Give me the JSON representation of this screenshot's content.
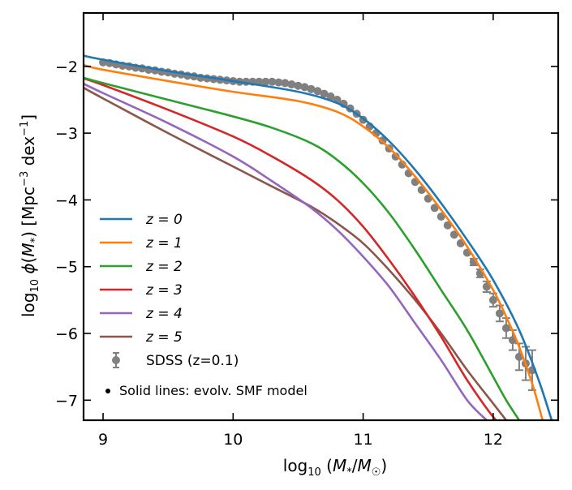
{
  "chart_data": {
    "type": "line",
    "title": "",
    "xlabel": "log10(M*/M☉)",
    "ylabel": "log10 φ(M*) [Mpc^-3 dex^-1]",
    "xlim": [
      8.85,
      12.5
    ],
    "ylim": [
      -7.3,
      -1.2
    ],
    "xticks": [
      9,
      10,
      11,
      12
    ],
    "yticks": [
      -2,
      -3,
      -4,
      -5,
      -6,
      -7
    ],
    "xtick_labels": [
      "9",
      "10",
      "11",
      "12"
    ],
    "ytick_labels": [
      "−2",
      "−3",
      "−4",
      "−5",
      "−6",
      "−7"
    ],
    "colors": {
      "z0": "#1f77b4",
      "z1": "#ff7f0e",
      "z2": "#2ca02c",
      "z3": "#d62728",
      "z4": "#9467bd",
      "z5": "#8c564b",
      "sdss": "#808080"
    },
    "series": [
      {
        "name": "z = 0",
        "key": "z0",
        "x": [
          8.85,
          9.0,
          9.5,
          10.0,
          10.5,
          10.8,
          11.0,
          11.2,
          11.4,
          11.6,
          11.8,
          12.0,
          12.2,
          12.35,
          12.45
        ],
        "y": [
          -1.84,
          -1.9,
          -2.07,
          -2.22,
          -2.38,
          -2.55,
          -2.78,
          -3.12,
          -3.55,
          -4.05,
          -4.6,
          -5.2,
          -5.95,
          -6.7,
          -7.3
        ]
      },
      {
        "name": "z = 1",
        "key": "z1",
        "x": [
          8.85,
          9.0,
          9.5,
          10.0,
          10.5,
          10.8,
          11.0,
          11.2,
          11.4,
          11.6,
          11.8,
          12.0,
          12.1,
          12.2,
          12.3,
          12.38
        ],
        "y": [
          -1.98,
          -2.05,
          -2.22,
          -2.38,
          -2.52,
          -2.68,
          -2.9,
          -3.22,
          -3.65,
          -4.15,
          -4.7,
          -5.35,
          -5.75,
          -6.2,
          -6.75,
          -7.3
        ]
      },
      {
        "name": "z = 2",
        "key": "z2",
        "x": [
          8.85,
          9.0,
          9.5,
          10.0,
          10.3,
          10.6,
          10.8,
          11.0,
          11.2,
          11.4,
          11.6,
          11.8,
          12.0,
          12.1,
          12.2
        ],
        "y": [
          -2.17,
          -2.25,
          -2.5,
          -2.75,
          -2.92,
          -3.15,
          -3.4,
          -3.75,
          -4.2,
          -4.75,
          -5.35,
          -5.95,
          -6.65,
          -7.0,
          -7.3
        ]
      },
      {
        "name": "z = 3",
        "key": "z3",
        "x": [
          8.85,
          9.0,
          9.5,
          10.0,
          10.3,
          10.6,
          10.8,
          11.0,
          11.2,
          11.4,
          11.6,
          11.8,
          12.0,
          12.05
        ],
        "y": [
          -2.18,
          -2.28,
          -2.65,
          -3.05,
          -3.35,
          -3.7,
          -4.0,
          -4.4,
          -4.9,
          -5.45,
          -6.05,
          -6.7,
          -7.25,
          -7.3
        ]
      },
      {
        "name": "z = 4",
        "key": "z4",
        "x": [
          8.85,
          9.0,
          9.5,
          10.0,
          10.3,
          10.6,
          10.8,
          11.0,
          11.2,
          11.4,
          11.6,
          11.8,
          11.95
        ],
        "y": [
          -2.26,
          -2.4,
          -2.85,
          -3.35,
          -3.72,
          -4.12,
          -4.45,
          -4.85,
          -5.3,
          -5.85,
          -6.4,
          -7.0,
          -7.3
        ]
      },
      {
        "name": "z = 5",
        "key": "z5",
        "x": [
          8.85,
          9.0,
          9.5,
          10.0,
          10.3,
          10.6,
          10.8,
          11.0,
          11.2,
          11.4,
          11.6,
          11.8,
          12.0,
          12.1
        ],
        "y": [
          -2.32,
          -2.48,
          -3.0,
          -3.5,
          -3.8,
          -4.1,
          -4.35,
          -4.65,
          -5.05,
          -5.5,
          -6.0,
          -6.55,
          -7.05,
          -7.3
        ]
      }
    ],
    "sdss": {
      "name": "SDSS (z=0.1)",
      "x": [
        9.0,
        9.05,
        9.1,
        9.15,
        9.2,
        9.25,
        9.3,
        9.35,
        9.4,
        9.45,
        9.5,
        9.55,
        9.6,
        9.65,
        9.7,
        9.75,
        9.8,
        9.85,
        9.9,
        9.95,
        10.0,
        10.05,
        10.1,
        10.15,
        10.2,
        10.25,
        10.3,
        10.35,
        10.4,
        10.45,
        10.5,
        10.55,
        10.6,
        10.65,
        10.7,
        10.75,
        10.8,
        10.85,
        10.9,
        10.95,
        11.0,
        11.05,
        11.1,
        11.15,
        11.2,
        11.25,
        11.3,
        11.35,
        11.4,
        11.45,
        11.5,
        11.55,
        11.6,
        11.65,
        11.7,
        11.75,
        11.8,
        11.85,
        11.9,
        11.95,
        12.0,
        12.05,
        12.1,
        12.15,
        12.2,
        12.25,
        12.3
      ],
      "y": [
        -1.94,
        -1.95,
        -1.97,
        -1.99,
        -2.0,
        -2.02,
        -2.03,
        -2.05,
        -2.06,
        -2.08,
        -2.09,
        -2.11,
        -2.12,
        -2.14,
        -2.15,
        -2.17,
        -2.18,
        -2.19,
        -2.2,
        -2.21,
        -2.22,
        -2.23,
        -2.23,
        -2.23,
        -2.23,
        -2.23,
        -2.23,
        -2.24,
        -2.25,
        -2.27,
        -2.29,
        -2.31,
        -2.34,
        -2.37,
        -2.41,
        -2.45,
        -2.5,
        -2.56,
        -2.63,
        -2.71,
        -2.8,
        -2.9,
        -3.0,
        -3.11,
        -3.23,
        -3.35,
        -3.47,
        -3.6,
        -3.73,
        -3.85,
        -3.98,
        -4.12,
        -4.25,
        -4.38,
        -4.52,
        -4.65,
        -4.79,
        -4.93,
        -5.1,
        -5.3,
        -5.5,
        -5.7,
        -5.92,
        -6.1,
        -6.35,
        -6.45,
        -6.55
      ],
      "yerr": [
        0.02,
        0.02,
        0.02,
        0.02,
        0.02,
        0.02,
        0.02,
        0.02,
        0.02,
        0.02,
        0.02,
        0.02,
        0.02,
        0.02,
        0.02,
        0.02,
        0.02,
        0.02,
        0.02,
        0.02,
        0.02,
        0.02,
        0.02,
        0.02,
        0.02,
        0.02,
        0.02,
        0.02,
        0.02,
        0.02,
        0.02,
        0.02,
        0.02,
        0.02,
        0.02,
        0.02,
        0.02,
        0.02,
        0.02,
        0.02,
        0.02,
        0.02,
        0.02,
        0.02,
        0.02,
        0.02,
        0.02,
        0.02,
        0.02,
        0.02,
        0.02,
        0.02,
        0.02,
        0.03,
        0.03,
        0.03,
        0.04,
        0.05,
        0.06,
        0.08,
        0.1,
        0.12,
        0.15,
        0.15,
        0.2,
        0.25,
        0.3
      ]
    },
    "legend": {
      "position": "lower-left",
      "entries": [
        "z = 0",
        "z = 1",
        "z = 2",
        "z = 3",
        "z = 4",
        "z = 5",
        "SDSS (z=0.1)"
      ],
      "note": "Solid lines: evolv. SMF model"
    }
  }
}
